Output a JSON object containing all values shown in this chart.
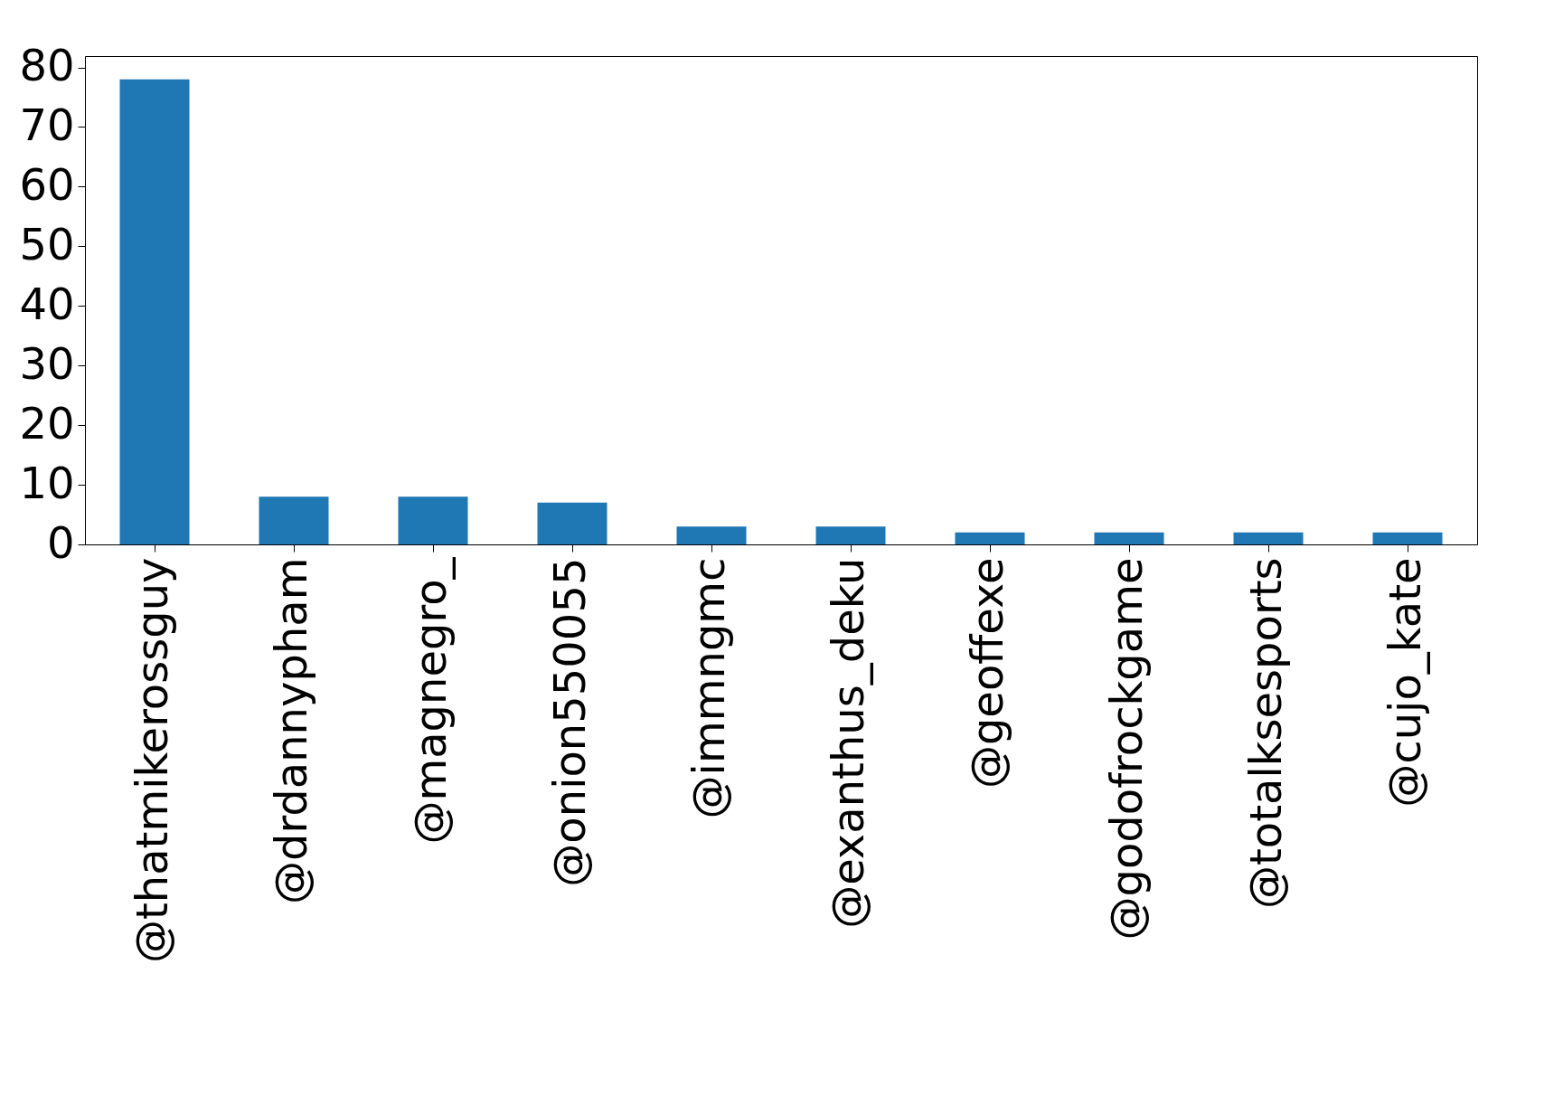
{
  "chart_data": {
    "type": "bar",
    "categories": [
      "@thatmikerossguy",
      "@drdannypham",
      "@magnegro_",
      "@onion550055",
      "@immngmc",
      "@exanthus_deku",
      "@geoffexe",
      "@godofrockgame",
      "@totalksesports",
      "@cujo_kate"
    ],
    "values": [
      78,
      8,
      8,
      7,
      3,
      3,
      2,
      2,
      2,
      2
    ],
    "color": "#1f77b4",
    "ylim": [
      0,
      81.9
    ],
    "yticks": [
      0,
      10,
      20,
      30,
      40,
      50,
      60,
      70,
      80
    ],
    "grid": false
  }
}
